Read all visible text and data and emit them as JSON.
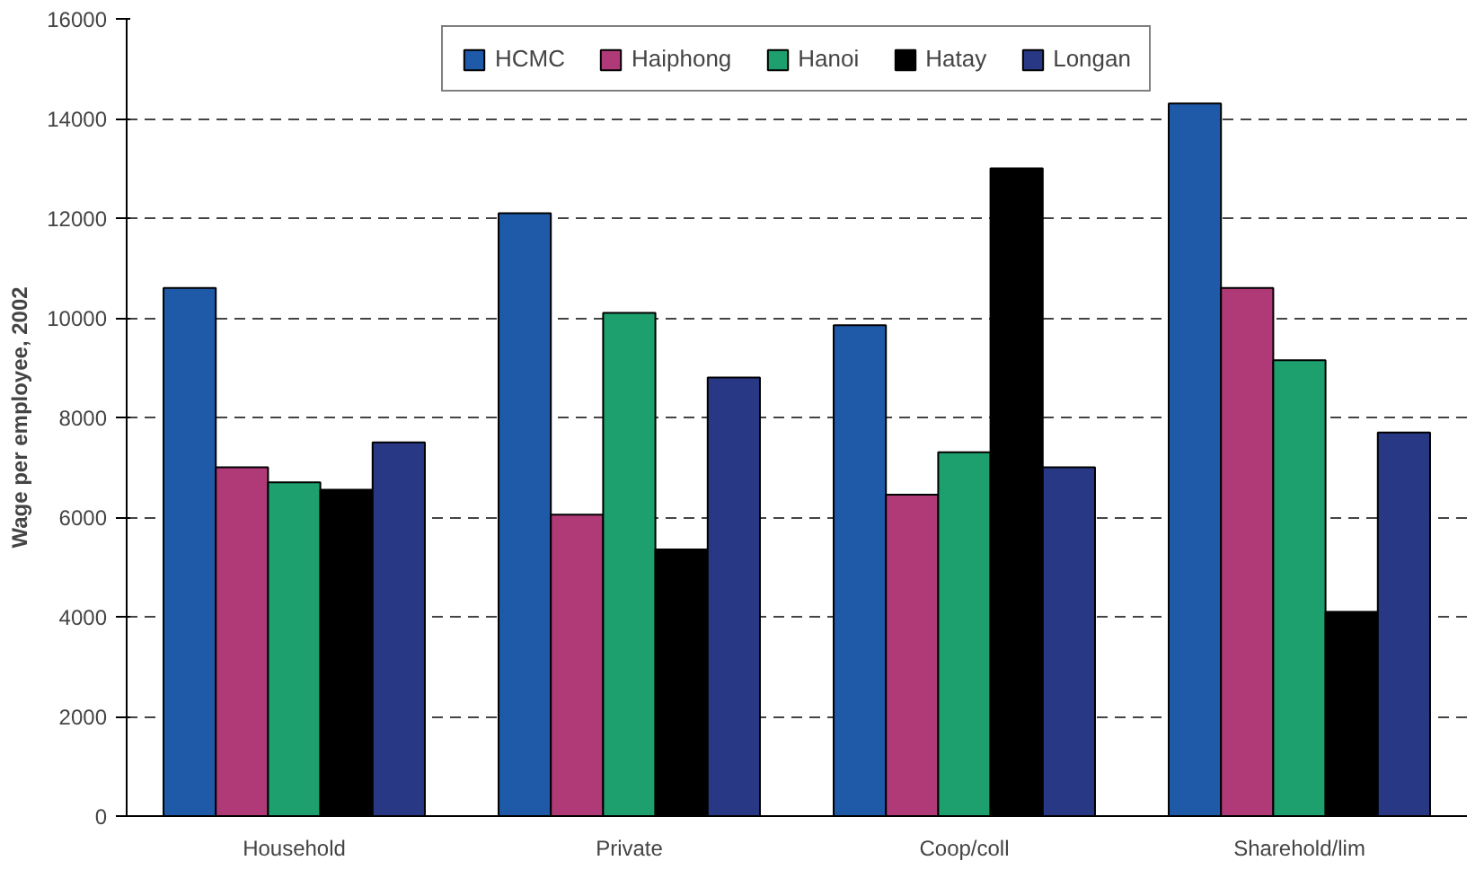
{
  "chart_data": {
    "type": "bar",
    "ylabel": "Wage per employee, 2002",
    "categories": [
      "Household",
      "Private",
      "Coop/coll",
      "Sharehold/lim"
    ],
    "series": [
      {
        "name": "HCMC",
        "color": "#1f5aa8",
        "values": [
          10600,
          12100,
          9850,
          14300
        ]
      },
      {
        "name": "Haiphong",
        "color": "#b03a78",
        "values": [
          7000,
          6050,
          6450,
          10600
        ]
      },
      {
        "name": "Hanoi",
        "color": "#1ea06e",
        "values": [
          6700,
          10100,
          7300,
          9150
        ]
      },
      {
        "name": "Hatay",
        "color": "#000000",
        "values": [
          6550,
          5350,
          13000,
          4100
        ]
      },
      {
        "name": "Longan",
        "color": "#283884",
        "values": [
          7500,
          8800,
          7000,
          7700
        ]
      }
    ],
    "ylim": [
      0,
      16000
    ],
    "yticks": [
      0,
      2000,
      4000,
      6000,
      8000,
      10000,
      12000,
      14000,
      16000
    ],
    "grid": "y",
    "legend": "top"
  }
}
